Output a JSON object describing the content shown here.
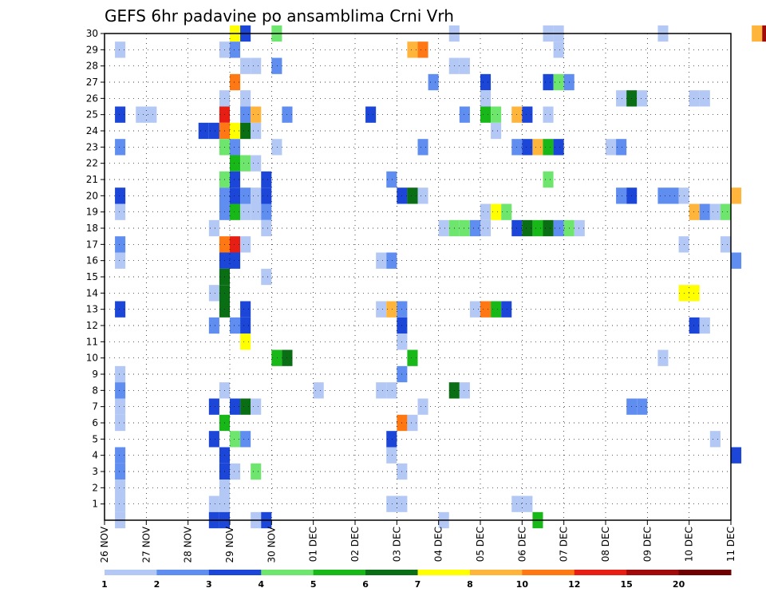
{
  "chart_data": {
    "type": "heatmap",
    "title": "GEFS 6hr padavine po ansamblima Crni Vrh",
    "x_ticks": [
      "26 NOV",
      "27 NOV",
      "28 NOV",
      "29 NOV",
      "30 NOV",
      "01 DEC",
      "02 DEC",
      "03 DEC",
      "04 DEC",
      "05 DEC",
      "06 DEC",
      "07 DEC",
      "08 DEC",
      "09 DEC",
      "10 DEC",
      "11 DEC"
    ],
    "x_steps_per_day": 4,
    "y_ticks": [
      "1",
      "2",
      "3",
      "4",
      "5",
      "6",
      "7",
      "8",
      "9",
      "10",
      "11",
      "12",
      "13",
      "14",
      "15",
      "16",
      "17",
      "18",
      "19",
      "20",
      "21",
      "22",
      "23",
      "24",
      "25",
      "26",
      "27",
      "28",
      "29",
      "30"
    ],
    "ylim": [
      0,
      30
    ],
    "grid": true,
    "colorbar": {
      "colors": [
        "#b4c8f5",
        "#5f8ef0",
        "#1b46d8",
        "#6ee66e",
        "#19b819",
        "#0a6e14",
        "#ffff00",
        "#ffb43c",
        "#ff7814",
        "#e61e14",
        "#a00a0a",
        "#6e0000"
      ],
      "labels": [
        "1",
        "2",
        "3",
        "4",
        "5",
        "6",
        "7",
        "8",
        "10",
        "12",
        "15",
        "20"
      ]
    },
    "cells": [
      [
        30,
        12,
        6
      ],
      [
        30,
        13,
        2
      ],
      [
        30,
        16,
        3
      ],
      [
        30,
        33,
        0
      ],
      [
        30,
        42,
        0
      ],
      [
        30,
        43,
        0
      ],
      [
        30,
        53,
        0
      ],
      [
        30,
        62,
        7
      ],
      [
        30,
        63,
        10
      ],
      [
        29,
        1,
        0
      ],
      [
        29,
        11,
        0
      ],
      [
        29,
        12,
        1
      ],
      [
        29,
        29,
        7
      ],
      [
        29,
        30,
        8
      ],
      [
        29,
        43,
        0
      ],
      [
        28,
        13,
        0
      ],
      [
        28,
        14,
        0
      ],
      [
        28,
        16,
        1
      ],
      [
        28,
        33,
        0
      ],
      [
        28,
        34,
        0
      ],
      [
        27,
        12,
        8
      ],
      [
        27,
        31,
        1
      ],
      [
        27,
        36,
        2
      ],
      [
        27,
        42,
        2
      ],
      [
        27,
        43,
        3
      ],
      [
        27,
        44,
        1
      ],
      [
        26,
        11,
        0
      ],
      [
        26,
        13,
        0
      ],
      [
        26,
        36,
        0
      ],
      [
        26,
        49,
        0
      ],
      [
        26,
        50,
        5
      ],
      [
        26,
        51,
        0
      ],
      [
        26,
        56,
        0
      ],
      [
        26,
        57,
        0
      ],
      [
        25,
        1,
        2
      ],
      [
        25,
        3,
        0
      ],
      [
        25,
        4,
        0
      ],
      [
        25,
        11,
        9
      ],
      [
        25,
        13,
        1
      ],
      [
        25,
        14,
        7
      ],
      [
        25,
        17,
        1
      ],
      [
        25,
        25,
        2
      ],
      [
        25,
        34,
        1
      ],
      [
        25,
        36,
        4
      ],
      [
        25,
        37,
        3
      ],
      [
        25,
        39,
        7
      ],
      [
        25,
        40,
        2
      ],
      [
        25,
        42,
        0
      ],
      [
        24,
        9,
        2
      ],
      [
        24,
        10,
        2
      ],
      [
        24,
        11,
        8
      ],
      [
        24,
        12,
        6
      ],
      [
        24,
        13,
        5
      ],
      [
        24,
        14,
        0
      ],
      [
        24,
        37,
        0
      ],
      [
        23,
        1,
        1
      ],
      [
        23,
        11,
        3
      ],
      [
        23,
        12,
        1
      ],
      [
        23,
        16,
        0
      ],
      [
        23,
        30,
        1
      ],
      [
        23,
        39,
        1
      ],
      [
        23,
        40,
        2
      ],
      [
        23,
        41,
        7
      ],
      [
        23,
        42,
        4
      ],
      [
        23,
        43,
        2
      ],
      [
        23,
        48,
        0
      ],
      [
        23,
        49,
        1
      ],
      [
        22,
        12,
        4
      ],
      [
        22,
        13,
        3
      ],
      [
        22,
        14,
        0
      ],
      [
        21,
        11,
        3
      ],
      [
        21,
        12,
        2
      ],
      [
        21,
        15,
        2
      ],
      [
        21,
        27,
        1
      ],
      [
        21,
        42,
        3
      ],
      [
        20,
        1,
        2
      ],
      [
        20,
        11,
        1
      ],
      [
        20,
        12,
        2
      ],
      [
        20,
        13,
        1
      ],
      [
        20,
        14,
        0
      ],
      [
        20,
        15,
        2
      ],
      [
        20,
        28,
        2
      ],
      [
        20,
        29,
        5
      ],
      [
        20,
        30,
        0
      ],
      [
        20,
        49,
        1
      ],
      [
        20,
        50,
        2
      ],
      [
        20,
        53,
        1
      ],
      [
        20,
        54,
        1
      ],
      [
        20,
        55,
        0
      ],
      [
        20,
        60,
        7
      ],
      [
        19,
        1,
        0
      ],
      [
        19,
        11,
        1
      ],
      [
        19,
        12,
        4
      ],
      [
        19,
        13,
        0
      ],
      [
        19,
        14,
        0
      ],
      [
        19,
        15,
        1
      ],
      [
        19,
        36,
        0
      ],
      [
        19,
        37,
        6
      ],
      [
        19,
        38,
        3
      ],
      [
        19,
        56,
        7
      ],
      [
        19,
        57,
        1
      ],
      [
        19,
        58,
        0
      ],
      [
        19,
        59,
        3
      ],
      [
        18,
        10,
        0
      ],
      [
        18,
        15,
        0
      ],
      [
        18,
        32,
        0
      ],
      [
        18,
        33,
        3
      ],
      [
        18,
        34,
        3
      ],
      [
        18,
        35,
        1
      ],
      [
        18,
        36,
        0
      ],
      [
        18,
        39,
        2
      ],
      [
        18,
        40,
        5
      ],
      [
        18,
        41,
        4
      ],
      [
        18,
        42,
        5
      ],
      [
        18,
        43,
        1
      ],
      [
        18,
        44,
        3
      ],
      [
        18,
        45,
        0
      ],
      [
        17,
        1,
        1
      ],
      [
        17,
        11,
        8
      ],
      [
        17,
        12,
        9
      ],
      [
        17,
        13,
        0
      ],
      [
        17,
        55,
        0
      ],
      [
        17,
        59,
        0
      ],
      [
        16,
        1,
        0
      ],
      [
        16,
        11,
        2
      ],
      [
        16,
        12,
        2
      ],
      [
        16,
        26,
        0
      ],
      [
        16,
        27,
        1
      ],
      [
        16,
        60,
        1
      ],
      [
        15,
        11,
        5
      ],
      [
        15,
        15,
        0
      ],
      [
        14,
        10,
        0
      ],
      [
        14,
        11,
        5
      ],
      [
        14,
        55,
        6
      ],
      [
        14,
        56,
        6
      ],
      [
        13,
        1,
        2
      ],
      [
        13,
        11,
        5
      ],
      [
        13,
        13,
        2
      ],
      [
        13,
        26,
        0
      ],
      [
        13,
        27,
        7
      ],
      [
        13,
        28,
        1
      ],
      [
        13,
        35,
        0
      ],
      [
        13,
        36,
        8
      ],
      [
        13,
        37,
        4
      ],
      [
        13,
        38,
        2
      ],
      [
        12,
        10,
        1
      ],
      [
        12,
        12,
        1
      ],
      [
        12,
        13,
        2
      ],
      [
        12,
        28,
        2
      ],
      [
        12,
        56,
        2
      ],
      [
        12,
        57,
        0
      ],
      [
        11,
        13,
        6
      ],
      [
        11,
        28,
        0
      ],
      [
        10,
        16,
        4
      ],
      [
        10,
        17,
        5
      ],
      [
        10,
        29,
        4
      ],
      [
        10,
        53,
        0
      ],
      [
        9,
        1,
        0
      ],
      [
        9,
        28,
        1
      ],
      [
        8,
        1,
        1
      ],
      [
        8,
        11,
        0
      ],
      [
        8,
        20,
        0
      ],
      [
        8,
        26,
        0
      ],
      [
        8,
        27,
        0
      ],
      [
        8,
        33,
        5
      ],
      [
        8,
        34,
        0
      ],
      [
        7,
        1,
        0
      ],
      [
        7,
        10,
        2
      ],
      [
        7,
        12,
        2
      ],
      [
        7,
        13,
        5
      ],
      [
        7,
        14,
        0
      ],
      [
        7,
        30,
        0
      ],
      [
        7,
        50,
        1
      ],
      [
        7,
        51,
        1
      ],
      [
        6,
        1,
        0
      ],
      [
        6,
        11,
        4
      ],
      [
        6,
        28,
        8
      ],
      [
        6,
        29,
        0
      ],
      [
        5,
        10,
        2
      ],
      [
        5,
        12,
        3
      ],
      [
        5,
        13,
        1
      ],
      [
        5,
        27,
        2
      ],
      [
        5,
        58,
        0
      ],
      [
        4,
        1,
        1
      ],
      [
        4,
        11,
        2
      ],
      [
        4,
        27,
        0
      ],
      [
        4,
        60,
        2
      ],
      [
        3,
        1,
        1
      ],
      [
        3,
        11,
        2
      ],
      [
        3,
        12,
        0
      ],
      [
        3,
        14,
        3
      ],
      [
        3,
        28,
        0
      ],
      [
        2,
        1,
        0
      ],
      [
        2,
        11,
        0
      ],
      [
        1,
        1,
        0
      ],
      [
        1,
        10,
        0
      ],
      [
        1,
        11,
        0
      ],
      [
        1,
        27,
        0
      ],
      [
        1,
        28,
        0
      ],
      [
        1,
        39,
        0
      ],
      [
        1,
        40,
        0
      ],
      [
        0,
        1,
        0
      ],
      [
        0,
        10,
        2
      ],
      [
        0,
        11,
        2
      ],
      [
        0,
        14,
        0
      ],
      [
        0,
        15,
        2
      ],
      [
        0,
        32,
        0
      ],
      [
        0,
        41,
        4
      ]
    ]
  }
}
